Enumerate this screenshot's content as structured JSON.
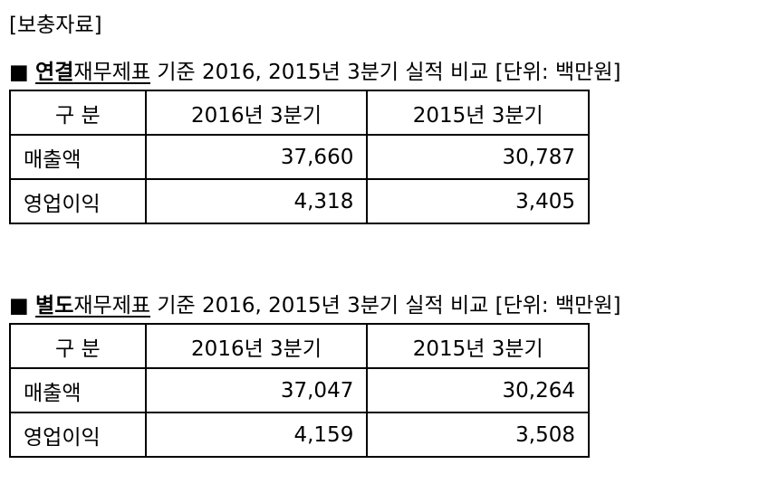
{
  "header": "[보충자료]",
  "sections": [
    {
      "bullet": "■",
      "bold": "연결",
      "underlined": "재무제표",
      "rest": " 기준 2016, 2015년 3분기 실적 비교 [단위: 백만원]",
      "table": {
        "headers": [
          "구 분",
          "2016년 3분기",
          "2015년 3분기"
        ],
        "rows": [
          [
            "매출액",
            "37,660",
            "30,787"
          ],
          [
            "영업이익",
            "4,318",
            "3,405"
          ]
        ]
      }
    },
    {
      "bullet": "■",
      "bold": "별도",
      "underlined": "재무제표",
      "rest": " 기준 2016, 2015년 3분기 실적 비교 [단위: 백만원]",
      "table": {
        "headers": [
          "구 분",
          "2016년 3분기",
          "2015년 3분기"
        ],
        "rows": [
          [
            "매출액",
            "37,047",
            "30,264"
          ],
          [
            "영업이익",
            "4,159",
            "3,508"
          ]
        ]
      }
    }
  ]
}
